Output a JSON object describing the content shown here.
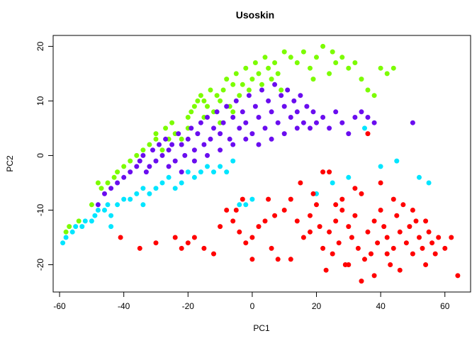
{
  "chart_data": {
    "type": "scatter",
    "title": "Usoskin",
    "xlabel": "PC1",
    "ylabel": "PC2",
    "xlim": [
      -62,
      68
    ],
    "ylim": [
      -25,
      22
    ],
    "xticks": [
      -60,
      -40,
      -20,
      0,
      20,
      40,
      60
    ],
    "yticks": [
      -20,
      -10,
      0,
      10,
      20
    ],
    "grid": false,
    "legend": "none",
    "series": [
      {
        "color": "#7CFC00",
        "points": [
          [
            -58,
            -14
          ],
          [
            -57,
            -13
          ],
          [
            -54,
            -12
          ],
          [
            -50,
            -9
          ],
          [
            -48,
            -5
          ],
          [
            -47,
            -6
          ],
          [
            -45,
            -5
          ],
          [
            -43,
            -4
          ],
          [
            -42,
            -3
          ],
          [
            -40,
            -2
          ],
          [
            -38,
            -1
          ],
          [
            -36,
            0
          ],
          [
            -34,
            1
          ],
          [
            -32,
            2
          ],
          [
            -30,
            3
          ],
          [
            -28,
            1
          ],
          [
            -26,
            3
          ],
          [
            -24,
            4
          ],
          [
            -22,
            3
          ],
          [
            -20,
            5
          ],
          [
            -20,
            7
          ],
          [
            -19,
            8
          ],
          [
            -18,
            9
          ],
          [
            -17,
            10
          ],
          [
            -16,
            11
          ],
          [
            -15,
            10
          ],
          [
            -14,
            9
          ],
          [
            -13,
            12
          ],
          [
            -12,
            8
          ],
          [
            -11,
            11
          ],
          [
            -10,
            10
          ],
          [
            -9,
            12
          ],
          [
            -8,
            14
          ],
          [
            -7,
            9
          ],
          [
            -6,
            13
          ],
          [
            -5,
            15
          ],
          [
            -4,
            11
          ],
          [
            -3,
            13
          ],
          [
            -2,
            16
          ],
          [
            -1,
            12
          ],
          [
            0,
            14
          ],
          [
            1,
            17
          ],
          [
            2,
            15
          ],
          [
            3,
            13
          ],
          [
            4,
            18
          ],
          [
            5,
            16
          ],
          [
            6,
            14
          ],
          [
            7,
            17
          ],
          [
            8,
            15
          ],
          [
            9,
            12
          ],
          [
            10,
            19
          ],
          [
            12,
            18
          ],
          [
            14,
            17
          ],
          [
            16,
            19
          ],
          [
            18,
            16
          ],
          [
            19,
            14
          ],
          [
            20,
            18
          ],
          [
            22,
            20
          ],
          [
            24,
            15
          ],
          [
            25,
            19
          ],
          [
            26,
            17
          ],
          [
            28,
            18
          ],
          [
            30,
            16
          ],
          [
            32,
            17
          ],
          [
            34,
            14
          ],
          [
            36,
            12
          ],
          [
            38,
            11
          ],
          [
            40,
            16
          ],
          [
            42,
            15
          ],
          [
            44,
            16
          ],
          [
            -25,
            6
          ],
          [
            -27,
            5
          ],
          [
            -30,
            4
          ],
          [
            -15,
            7
          ],
          [
            -10,
            6
          ],
          [
            -6,
            8
          ]
        ]
      },
      {
        "color": "#6A0DEF",
        "points": [
          [
            -48,
            -9
          ],
          [
            -46,
            -7
          ],
          [
            -44,
            -6
          ],
          [
            -42,
            -5
          ],
          [
            -40,
            -4
          ],
          [
            -38,
            -3
          ],
          [
            -36,
            -2
          ],
          [
            -35,
            -1
          ],
          [
            -34,
            0
          ],
          [
            -33,
            -3
          ],
          [
            -32,
            -2
          ],
          [
            -31,
            1
          ],
          [
            -30,
            -1
          ],
          [
            -29,
            2
          ],
          [
            -28,
            0
          ],
          [
            -27,
            3
          ],
          [
            -26,
            1
          ],
          [
            -25,
            2
          ],
          [
            -24,
            -1
          ],
          [
            -23,
            4
          ],
          [
            -22,
            2
          ],
          [
            -21,
            0
          ],
          [
            -20,
            3
          ],
          [
            -19,
            5
          ],
          [
            -18,
            1
          ],
          [
            -17,
            4
          ],
          [
            -16,
            6
          ],
          [
            -15,
            2
          ],
          [
            -14,
            7
          ],
          [
            -13,
            3
          ],
          [
            -12,
            5
          ],
          [
            -11,
            8
          ],
          [
            -10,
            4
          ],
          [
            -9,
            6
          ],
          [
            -8,
            9
          ],
          [
            -7,
            3
          ],
          [
            -6,
            7
          ],
          [
            -5,
            10
          ],
          [
            -4,
            5
          ],
          [
            -3,
            8
          ],
          [
            -2,
            6
          ],
          [
            -1,
            11
          ],
          [
            0,
            4
          ],
          [
            1,
            9
          ],
          [
            2,
            7
          ],
          [
            3,
            12
          ],
          [
            4,
            5
          ],
          [
            5,
            10
          ],
          [
            6,
            8
          ],
          [
            7,
            13
          ],
          [
            8,
            6
          ],
          [
            9,
            11
          ],
          [
            10,
            9
          ],
          [
            11,
            12
          ],
          [
            12,
            7
          ],
          [
            13,
            10
          ],
          [
            14,
            8
          ],
          [
            15,
            11
          ],
          [
            16,
            6
          ],
          [
            17,
            9
          ],
          [
            18,
            5
          ],
          [
            19,
            8
          ],
          [
            20,
            6
          ],
          [
            22,
            7
          ],
          [
            24,
            5
          ],
          [
            26,
            8
          ],
          [
            28,
            6
          ],
          [
            30,
            4
          ],
          [
            32,
            7
          ],
          [
            34,
            8
          ],
          [
            36,
            7
          ],
          [
            38,
            6
          ],
          [
            50,
            6
          ],
          [
            -26,
            -2
          ],
          [
            -22,
            -3
          ],
          [
            -18,
            -1
          ],
          [
            -14,
            0
          ],
          [
            -10,
            1
          ],
          [
            -6,
            2
          ],
          [
            -2,
            3
          ],
          [
            2,
            2
          ],
          [
            6,
            3
          ],
          [
            10,
            4
          ],
          [
            14,
            5
          ]
        ]
      },
      {
        "color": "#00E5FF",
        "points": [
          [
            -59,
            -16
          ],
          [
            -58,
            -15
          ],
          [
            -56,
            -14
          ],
          [
            -55,
            -13
          ],
          [
            -53,
            -13
          ],
          [
            -52,
            -12
          ],
          [
            -50,
            -12
          ],
          [
            -49,
            -11
          ],
          [
            -48,
            -10
          ],
          [
            -46,
            -10
          ],
          [
            -45,
            -9
          ],
          [
            -44,
            -11
          ],
          [
            -42,
            -9
          ],
          [
            -40,
            -8
          ],
          [
            -38,
            -8
          ],
          [
            -36,
            -7
          ],
          [
            -34,
            -6
          ],
          [
            -32,
            -7
          ],
          [
            -30,
            -6
          ],
          [
            -28,
            -5
          ],
          [
            -26,
            -4
          ],
          [
            -24,
            -6
          ],
          [
            -22,
            -5
          ],
          [
            -20,
            -3
          ],
          [
            -18,
            -4
          ],
          [
            -16,
            -3
          ],
          [
            -14,
            -2
          ],
          [
            -12,
            -3
          ],
          [
            -10,
            -2
          ],
          [
            -8,
            -3
          ],
          [
            -6,
            -1
          ],
          [
            -4,
            -9
          ],
          [
            -2,
            -9
          ],
          [
            0,
            -8
          ],
          [
            20,
            -7
          ],
          [
            25,
            -5
          ],
          [
            30,
            -4
          ],
          [
            35,
            5
          ],
          [
            40,
            -2
          ],
          [
            45,
            -1
          ],
          [
            52,
            -4
          ],
          [
            55,
            -5
          ],
          [
            -34,
            -9
          ],
          [
            -44,
            -13
          ]
        ]
      },
      {
        "color": "#FF0000",
        "points": [
          [
            -41,
            -15
          ],
          [
            -35,
            -17
          ],
          [
            -30,
            -16
          ],
          [
            -24,
            -15
          ],
          [
            -22,
            -17
          ],
          [
            -20,
            -16
          ],
          [
            -18,
            -15
          ],
          [
            -15,
            -17
          ],
          [
            -12,
            -18
          ],
          [
            -10,
            -13
          ],
          [
            -8,
            -10
          ],
          [
            -6,
            -12
          ],
          [
            -4,
            -14
          ],
          [
            -2,
            -16
          ],
          [
            0,
            -15
          ],
          [
            2,
            -13
          ],
          [
            4,
            -12
          ],
          [
            6,
            -17
          ],
          [
            8,
            -19
          ],
          [
            10,
            -10
          ],
          [
            12,
            -8
          ],
          [
            14,
            -12
          ],
          [
            16,
            -15
          ],
          [
            18,
            -11
          ],
          [
            20,
            -9
          ],
          [
            21,
            -13
          ],
          [
            22,
            -17
          ],
          [
            23,
            -21
          ],
          [
            24,
            -14
          ],
          [
            25,
            -18
          ],
          [
            26,
            -12
          ],
          [
            27,
            -16
          ],
          [
            28,
            -10
          ],
          [
            29,
            -20
          ],
          [
            30,
            -13
          ],
          [
            31,
            -15
          ],
          [
            32,
            -11
          ],
          [
            33,
            -17
          ],
          [
            34,
            -23
          ],
          [
            35,
            -19
          ],
          [
            36,
            -14
          ],
          [
            37,
            -18
          ],
          [
            38,
            -12
          ],
          [
            39,
            -16
          ],
          [
            40,
            -10
          ],
          [
            41,
            -13
          ],
          [
            42,
            -15
          ],
          [
            43,
            -20
          ],
          [
            44,
            -17
          ],
          [
            45,
            -11
          ],
          [
            46,
            -14
          ],
          [
            47,
            -9
          ],
          [
            48,
            -16
          ],
          [
            49,
            -13
          ],
          [
            50,
            -18
          ],
          [
            51,
            -12
          ],
          [
            52,
            -15
          ],
          [
            53,
            -17
          ],
          [
            54,
            -20
          ],
          [
            55,
            -14
          ],
          [
            56,
            -16
          ],
          [
            57,
            -18
          ],
          [
            58,
            -15
          ],
          [
            60,
            -17
          ],
          [
            62,
            -15
          ],
          [
            64,
            -22
          ],
          [
            15,
            -5
          ],
          [
            19,
            -7
          ],
          [
            24,
            -3
          ],
          [
            28,
            -8
          ],
          [
            32,
            -6
          ],
          [
            36,
            4
          ],
          [
            40,
            -5
          ],
          [
            44,
            -8
          ],
          [
            -5,
            -10
          ],
          [
            5,
            -8
          ],
          [
            12,
            -19
          ],
          [
            18,
            -14
          ],
          [
            22,
            -3
          ],
          [
            26,
            -9
          ],
          [
            30,
            -20
          ],
          [
            34,
            -7
          ],
          [
            38,
            -22
          ],
          [
            42,
            -18
          ],
          [
            46,
            -21
          ],
          [
            50,
            -10
          ],
          [
            54,
            -12
          ],
          [
            0,
            -19
          ],
          [
            -3,
            -8
          ],
          [
            7,
            -11
          ]
        ]
      }
    ]
  }
}
